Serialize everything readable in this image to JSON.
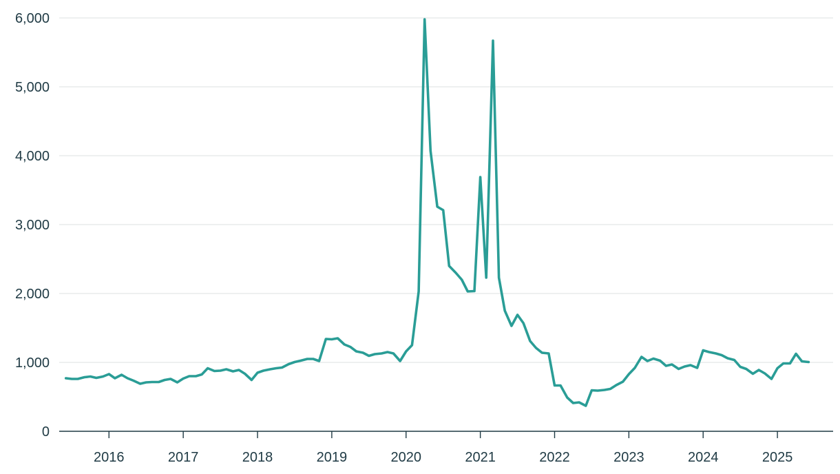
{
  "colors": {
    "line": "#2a9d96",
    "grid": "#e3e6e8",
    "axis": "#1f3a44"
  },
  "chart_data": {
    "type": "line",
    "title": "",
    "xlabel": "",
    "ylabel": "",
    "ylim": [
      0,
      6000
    ],
    "xlim": [
      2015.33,
      2025.75
    ],
    "grid": "horizontal",
    "legend": "none",
    "y_ticks": [
      {
        "value": 0,
        "label": "0"
      },
      {
        "value": 1000,
        "label": "1,000"
      },
      {
        "value": 2000,
        "label": "2,000"
      },
      {
        "value": 3000,
        "label": "3,000"
      },
      {
        "value": 4000,
        "label": "4,000"
      },
      {
        "value": 5000,
        "label": "5,000"
      },
      {
        "value": 6000,
        "label": "6,000"
      }
    ],
    "x_ticks": [
      {
        "value": 2016,
        "label": "2016"
      },
      {
        "value": 2017,
        "label": "2017"
      },
      {
        "value": 2018,
        "label": "2018"
      },
      {
        "value": 2019,
        "label": "2019"
      },
      {
        "value": 2020,
        "label": "2020"
      },
      {
        "value": 2021,
        "label": "2021"
      },
      {
        "value": 2022,
        "label": "2022"
      },
      {
        "value": 2023,
        "label": "2023"
      },
      {
        "value": 2024,
        "label": "2024"
      },
      {
        "value": 2025,
        "label": "2025"
      }
    ],
    "series": [
      {
        "x": [
          2015.42,
          2015.5,
          2015.58,
          2015.67,
          2015.75,
          2015.83,
          2015.92,
          2016.0,
          2016.08,
          2016.17,
          2016.25,
          2016.33,
          2016.42,
          2016.5,
          2016.58,
          2016.67,
          2016.75,
          2016.83,
          2016.92,
          2017.0,
          2017.08,
          2017.17,
          2017.25,
          2017.33,
          2017.42,
          2017.5,
          2017.58,
          2017.67,
          2017.75,
          2017.83,
          2017.92,
          2018.0,
          2018.08,
          2018.17,
          2018.25,
          2018.33,
          2018.42,
          2018.5,
          2018.58,
          2018.67,
          2018.75,
          2018.83,
          2018.92,
          2019.0,
          2019.08,
          2019.17,
          2019.25,
          2019.33,
          2019.42,
          2019.5,
          2019.58,
          2019.67,
          2019.75,
          2019.83,
          2019.92,
          2020.0,
          2020.08,
          2020.17,
          2020.25,
          2020.33,
          2020.42,
          2020.5,
          2020.58,
          2020.67,
          2020.75,
          2020.83,
          2020.92,
          2021.0,
          2021.08,
          2021.17,
          2021.25,
          2021.33,
          2021.42,
          2021.5,
          2021.58,
          2021.67,
          2021.75,
          2021.83,
          2021.92,
          2022.0,
          2022.08,
          2022.17,
          2022.25,
          2022.33,
          2022.42,
          2022.5,
          2022.58,
          2022.67,
          2022.75,
          2022.83,
          2022.92,
          2023.0,
          2023.08,
          2023.17,
          2023.25,
          2023.33,
          2023.42,
          2023.5,
          2023.58,
          2023.67,
          2023.75,
          2023.83,
          2023.92,
          2024.0,
          2024.08,
          2024.17,
          2024.25,
          2024.33,
          2024.42,
          2024.5,
          2024.58,
          2024.67,
          2024.75,
          2024.83,
          2024.92,
          2025.0,
          2025.08,
          2025.17,
          2025.25,
          2025.33,
          2025.42
        ],
        "values": [
          770,
          760,
          760,
          785,
          795,
          775,
          795,
          830,
          770,
          820,
          770,
          735,
          690,
          710,
          715,
          715,
          745,
          760,
          710,
          765,
          800,
          800,
          825,
          915,
          875,
          880,
          900,
          870,
          890,
          835,
          745,
          850,
          880,
          900,
          915,
          925,
          975,
          1005,
          1025,
          1050,
          1050,
          1020,
          1340,
          1335,
          1350,
          1260,
          1225,
          1160,
          1140,
          1095,
          1120,
          1130,
          1150,
          1130,
          1020,
          1160,
          1250,
          2030,
          5980,
          4070,
          3260,
          3210,
          2400,
          2300,
          2200,
          2030,
          2035,
          3690,
          2230,
          5670,
          2230,
          1750,
          1530,
          1690,
          1570,
          1310,
          1210,
          1140,
          1130,
          665,
          665,
          490,
          410,
          420,
          370,
          595,
          590,
          600,
          615,
          670,
          720,
          830,
          920,
          1080,
          1020,
          1055,
          1025,
          950,
          970,
          905,
          940,
          960,
          920,
          1175,
          1150,
          1130,
          1105,
          1060,
          1035,
          935,
          905,
          835,
          890,
          840,
          760,
          915,
          985,
          985,
          1125,
          1015,
          1005
        ]
      }
    ]
  }
}
